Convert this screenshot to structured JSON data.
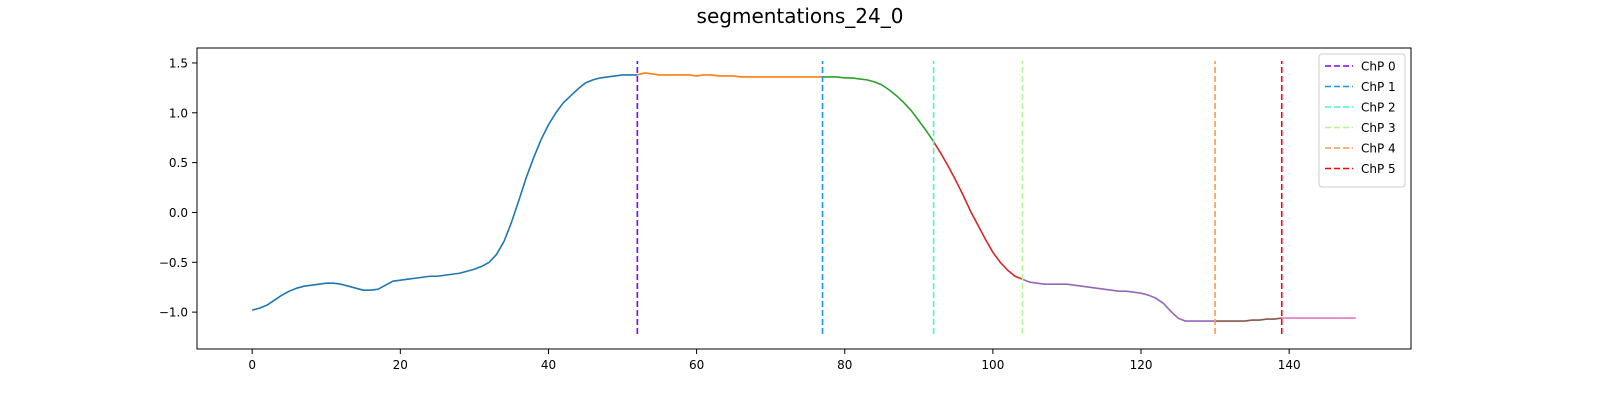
{
  "chart_data": {
    "type": "line",
    "title": "segmentations_24_0",
    "xlabel": "",
    "ylabel": "",
    "xlim": [
      -7.45,
      156.45
    ],
    "ylim": [
      -1.37,
      1.65
    ],
    "x_ticks": [
      0,
      20,
      40,
      60,
      80,
      100,
      120,
      140
    ],
    "y_ticks": [
      -1.0,
      -0.5,
      0.0,
      0.5,
      1.0,
      1.5
    ],
    "grid": false,
    "legend_placement": "top-right",
    "segments": [
      {
        "color": "#1f77b4",
        "x": [
          0,
          1,
          2,
          3,
          4,
          5,
          6,
          7,
          8,
          9,
          10,
          11,
          12,
          13,
          14,
          15,
          16,
          17,
          18,
          19,
          20,
          21,
          22,
          23,
          24,
          25,
          26,
          27,
          28,
          29,
          30,
          31,
          32,
          33,
          34,
          35,
          36,
          37,
          38,
          39,
          40,
          41,
          42,
          43,
          44,
          45,
          46,
          47,
          48,
          49,
          50,
          51,
          52
        ],
        "y": [
          -0.98,
          -0.96,
          -0.93,
          -0.88,
          -0.83,
          -0.79,
          -0.76,
          -0.74,
          -0.73,
          -0.72,
          -0.71,
          -0.71,
          -0.72,
          -0.74,
          -0.76,
          -0.78,
          -0.78,
          -0.77,
          -0.73,
          -0.69,
          -0.68,
          -0.67,
          -0.66,
          -0.65,
          -0.64,
          -0.64,
          -0.63,
          -0.62,
          -0.61,
          -0.59,
          -0.57,
          -0.54,
          -0.5,
          -0.42,
          -0.29,
          -0.1,
          0.12,
          0.35,
          0.55,
          0.73,
          0.88,
          1.0,
          1.1,
          1.17,
          1.24,
          1.3,
          1.33,
          1.35,
          1.36,
          1.37,
          1.38,
          1.38,
          1.38
        ]
      },
      {
        "color": "#ff7f0e",
        "x": [
          52,
          53,
          54,
          55,
          56,
          57,
          58,
          59,
          60,
          61,
          62,
          63,
          64,
          65,
          66,
          67,
          68,
          69,
          70,
          71,
          72,
          73,
          74,
          75,
          76,
          77
        ],
        "y": [
          1.38,
          1.4,
          1.39,
          1.38,
          1.38,
          1.38,
          1.38,
          1.38,
          1.37,
          1.38,
          1.38,
          1.37,
          1.37,
          1.37,
          1.36,
          1.36,
          1.36,
          1.36,
          1.36,
          1.36,
          1.36,
          1.36,
          1.36,
          1.36,
          1.36,
          1.36
        ]
      },
      {
        "color": "#2ca02c",
        "x": [
          77,
          78,
          79,
          80,
          81,
          82,
          83,
          84,
          85,
          86,
          87,
          88,
          89,
          90,
          91,
          92
        ],
        "y": [
          1.36,
          1.36,
          1.36,
          1.35,
          1.35,
          1.34,
          1.33,
          1.31,
          1.28,
          1.23,
          1.17,
          1.1,
          1.02,
          0.92,
          0.82,
          0.71
        ]
      },
      {
        "color": "#d62728",
        "x": [
          92,
          93,
          94,
          95,
          96,
          97,
          98,
          99,
          100,
          101,
          102,
          103,
          104
        ],
        "y": [
          0.71,
          0.59,
          0.46,
          0.32,
          0.17,
          0.01,
          -0.13,
          -0.27,
          -0.4,
          -0.5,
          -0.58,
          -0.64,
          -0.67
        ]
      },
      {
        "color": "#9467bd",
        "x": [
          104,
          105,
          106,
          107,
          108,
          109,
          110,
          111,
          112,
          113,
          114,
          115,
          116,
          117,
          118,
          119,
          120,
          121,
          122,
          123,
          124,
          125,
          126,
          127,
          128,
          129,
          130
        ],
        "y": [
          -0.67,
          -0.7,
          -0.71,
          -0.72,
          -0.72,
          -0.72,
          -0.72,
          -0.73,
          -0.74,
          -0.75,
          -0.76,
          -0.77,
          -0.78,
          -0.79,
          -0.79,
          -0.8,
          -0.81,
          -0.83,
          -0.86,
          -0.91,
          -0.99,
          -1.06,
          -1.09,
          -1.09,
          -1.09,
          -1.09,
          -1.09
        ]
      },
      {
        "color": "#8c564b",
        "x": [
          130,
          131,
          132,
          133,
          134,
          135,
          136,
          137,
          138,
          139
        ],
        "y": [
          -1.09,
          -1.09,
          -1.09,
          -1.09,
          -1.09,
          -1.08,
          -1.08,
          -1.07,
          -1.07,
          -1.06
        ]
      },
      {
        "color": "#e377c2",
        "x": [
          139,
          140,
          141,
          142,
          143,
          144,
          145,
          146,
          147,
          148,
          149
        ],
        "y": [
          -1.06,
          -1.06,
          -1.06,
          -1.06,
          -1.06,
          -1.06,
          -1.06,
          -1.06,
          -1.06,
          -1.06,
          -1.06
        ]
      }
    ],
    "changepoints": [
      {
        "name": "ChP 0",
        "x": 52,
        "color": "#8000ff"
      },
      {
        "name": "ChP 1",
        "x": 77,
        "color": "#1996f3"
      },
      {
        "name": "ChP 2",
        "x": 92,
        "color": "#4df3ce"
      },
      {
        "name": "ChP 3",
        "x": 104,
        "color": "#b2f396"
      },
      {
        "name": "ChP 4",
        "x": 130,
        "color": "#ff964f"
      },
      {
        "name": "ChP 5",
        "x": 139,
        "color": "#ff0000"
      }
    ],
    "changepoint_line_range": [
      -1.22,
      1.52
    ]
  }
}
